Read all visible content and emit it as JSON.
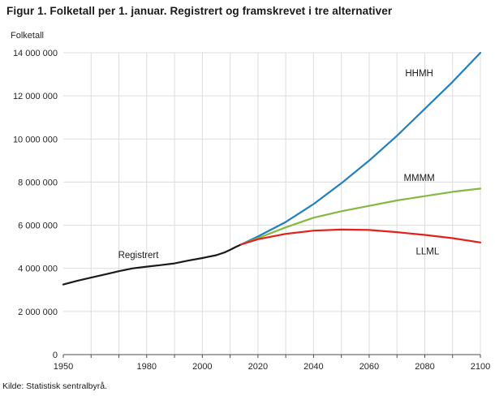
{
  "title": "Figur 1. Folketall per 1. januar. Registrert og framskrevet i tre alternativer",
  "source": "Kilde: Statistisk sentralbyrå.",
  "chart_data": {
    "type": "line",
    "title": "Figur 1. Folketall per 1. januar. Registrert og framskrevet i tre alternativer",
    "xlabel": "",
    "ylabel": "Folketall",
    "xlim": [
      1950,
      2100
    ],
    "ylim": [
      0,
      14000000
    ],
    "y_tick_step": 2000000,
    "x_grid_step": 10,
    "x_tick_labels": [
      1950,
      1980,
      2000,
      2020,
      2040,
      2060,
      2080,
      2100
    ],
    "grid": true,
    "legend_position": "inline-labels",
    "colors": {
      "registered": "#1a1a1a",
      "high": "#1f7fc2",
      "medium": "#84b941",
      "low": "#e3201b",
      "gridline": "#dcdcdc",
      "axis": "#4d4d4d"
    },
    "series": [
      {
        "name": "Registrert",
        "color": "#1a1a1a",
        "x": [
          1950,
          1955,
          1960,
          1965,
          1970,
          1975,
          1980,
          1985,
          1990,
          1995,
          2000,
          2005,
          2008,
          2010,
          2012,
          2014
        ],
        "values": [
          3250000,
          3420000,
          3570000,
          3720000,
          3870000,
          4000000,
          4080000,
          4150000,
          4230000,
          4360000,
          4480000,
          4610000,
          4740000,
          4860000,
          4990000,
          5110000
        ]
      },
      {
        "name": "HHMH",
        "color": "#1f7fc2",
        "x": [
          2014,
          2020,
          2030,
          2040,
          2050,
          2060,
          2070,
          2080,
          2090,
          2100
        ],
        "values": [
          5110000,
          5480000,
          6150000,
          6980000,
          7950000,
          9000000,
          10150000,
          11400000,
          12650000,
          14000000
        ]
      },
      {
        "name": "MMMM",
        "color": "#84b941",
        "x": [
          2014,
          2020,
          2030,
          2040,
          2050,
          2060,
          2070,
          2080,
          2090,
          2100
        ],
        "values": [
          5110000,
          5400000,
          5900000,
          6350000,
          6650000,
          6900000,
          7150000,
          7350000,
          7550000,
          7700000
        ]
      },
      {
        "name": "LLML",
        "color": "#e3201b",
        "x": [
          2014,
          2020,
          2030,
          2040,
          2050,
          2060,
          2070,
          2080,
          2090,
          2100
        ],
        "values": [
          5110000,
          5350000,
          5600000,
          5750000,
          5800000,
          5780000,
          5680000,
          5550000,
          5400000,
          5200000
        ]
      }
    ],
    "annotations": [
      {
        "text": "Registrert",
        "x": 1977,
        "y": 4620000
      },
      {
        "text": "HHMH",
        "x": 2078,
        "y": 13050000
      },
      {
        "text": "MMMM",
        "x": 2078,
        "y": 8200000
      },
      {
        "text": "LLML",
        "x": 2081,
        "y": 4800000
      }
    ]
  }
}
